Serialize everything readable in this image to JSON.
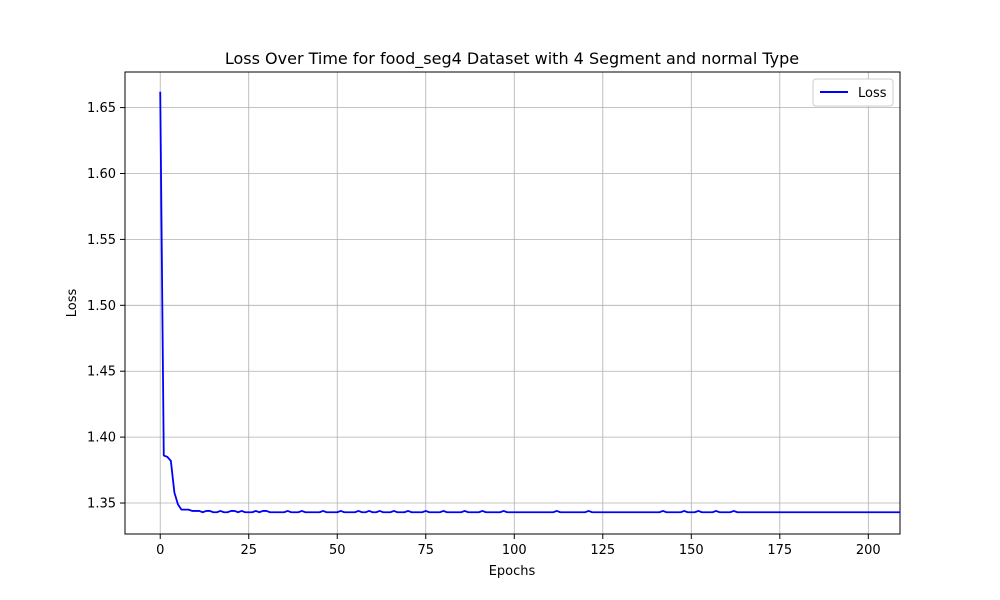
{
  "chart_data": {
    "type": "line",
    "title": "Loss Over Time for food_seg4 Dataset with 4 Segment and normal Type",
    "xlabel": "Epochs",
    "ylabel": "Loss",
    "xlim": [
      -9.95,
      208.95
    ],
    "ylim": [
      1.3265,
      1.677
    ],
    "x_ticks": [
      0,
      25,
      50,
      75,
      100,
      125,
      150,
      175,
      200
    ],
    "y_ticks": [
      1.35,
      1.4,
      1.45,
      1.5,
      1.55,
      1.6,
      1.65
    ],
    "x_tick_labels": [
      "0",
      "25",
      "50",
      "75",
      "100",
      "125",
      "150",
      "175",
      "200"
    ],
    "y_tick_labels": [
      "1.35",
      "1.40",
      "1.45",
      "1.50",
      "1.55",
      "1.60",
      "1.65"
    ],
    "grid": true,
    "legend_position": "top-right",
    "series": [
      {
        "name": "Loss",
        "color": "#0000ff",
        "x_start": 0,
        "x_step": 1,
        "values": [
          1.662,
          1.386,
          1.385,
          1.382,
          1.358,
          1.349,
          1.345,
          1.345,
          1.345,
          1.344,
          1.344,
          1.344,
          1.343,
          1.344,
          1.344,
          1.343,
          1.343,
          1.344,
          1.343,
          1.343,
          1.344,
          1.344,
          1.343,
          1.344,
          1.343,
          1.343,
          1.343,
          1.344,
          1.343,
          1.344,
          1.344,
          1.343,
          1.343,
          1.343,
          1.343,
          1.343,
          1.344,
          1.343,
          1.343,
          1.343,
          1.344,
          1.343,
          1.343,
          1.343,
          1.343,
          1.343,
          1.344,
          1.343,
          1.343,
          1.343,
          1.343,
          1.344,
          1.343,
          1.343,
          1.343,
          1.343,
          1.344,
          1.343,
          1.343,
          1.344,
          1.343,
          1.343,
          1.344,
          1.343,
          1.343,
          1.343,
          1.344,
          1.343,
          1.343,
          1.343,
          1.344,
          1.343,
          1.343,
          1.343,
          1.343,
          1.344,
          1.343,
          1.343,
          1.343,
          1.343,
          1.344,
          1.343,
          1.343,
          1.343,
          1.343,
          1.343,
          1.344,
          1.343,
          1.343,
          1.343,
          1.343,
          1.344,
          1.343,
          1.343,
          1.343,
          1.343,
          1.343,
          1.344,
          1.343,
          1.343,
          1.343,
          1.343,
          1.343,
          1.343,
          1.343,
          1.343,
          1.343,
          1.343,
          1.343,
          1.343,
          1.343,
          1.343,
          1.344,
          1.343,
          1.343,
          1.343,
          1.343,
          1.343,
          1.343,
          1.343,
          1.343,
          1.344,
          1.343,
          1.343,
          1.343,
          1.343,
          1.343,
          1.343,
          1.343,
          1.343,
          1.343,
          1.343,
          1.343,
          1.343,
          1.343,
          1.343,
          1.343,
          1.343,
          1.343,
          1.343,
          1.343,
          1.343,
          1.344,
          1.343,
          1.343,
          1.343,
          1.343,
          1.343,
          1.344,
          1.343,
          1.343,
          1.343,
          1.344,
          1.343,
          1.343,
          1.343,
          1.343,
          1.344,
          1.343,
          1.343,
          1.343,
          1.343,
          1.344,
          1.343,
          1.343,
          1.343,
          1.343,
          1.343,
          1.343,
          1.343,
          1.343,
          1.343,
          1.343,
          1.343,
          1.343,
          1.343,
          1.343,
          1.343,
          1.343,
          1.343,
          1.343,
          1.343,
          1.343,
          1.343,
          1.343,
          1.343,
          1.343,
          1.343,
          1.343,
          1.343,
          1.343,
          1.343,
          1.343,
          1.343,
          1.343,
          1.343,
          1.343,
          1.343,
          1.343,
          1.343,
          1.343,
          1.343,
          1.343,
          1.343,
          1.343,
          1.343,
          1.343,
          1.343,
          1.343,
          1.343
        ]
      }
    ]
  }
}
